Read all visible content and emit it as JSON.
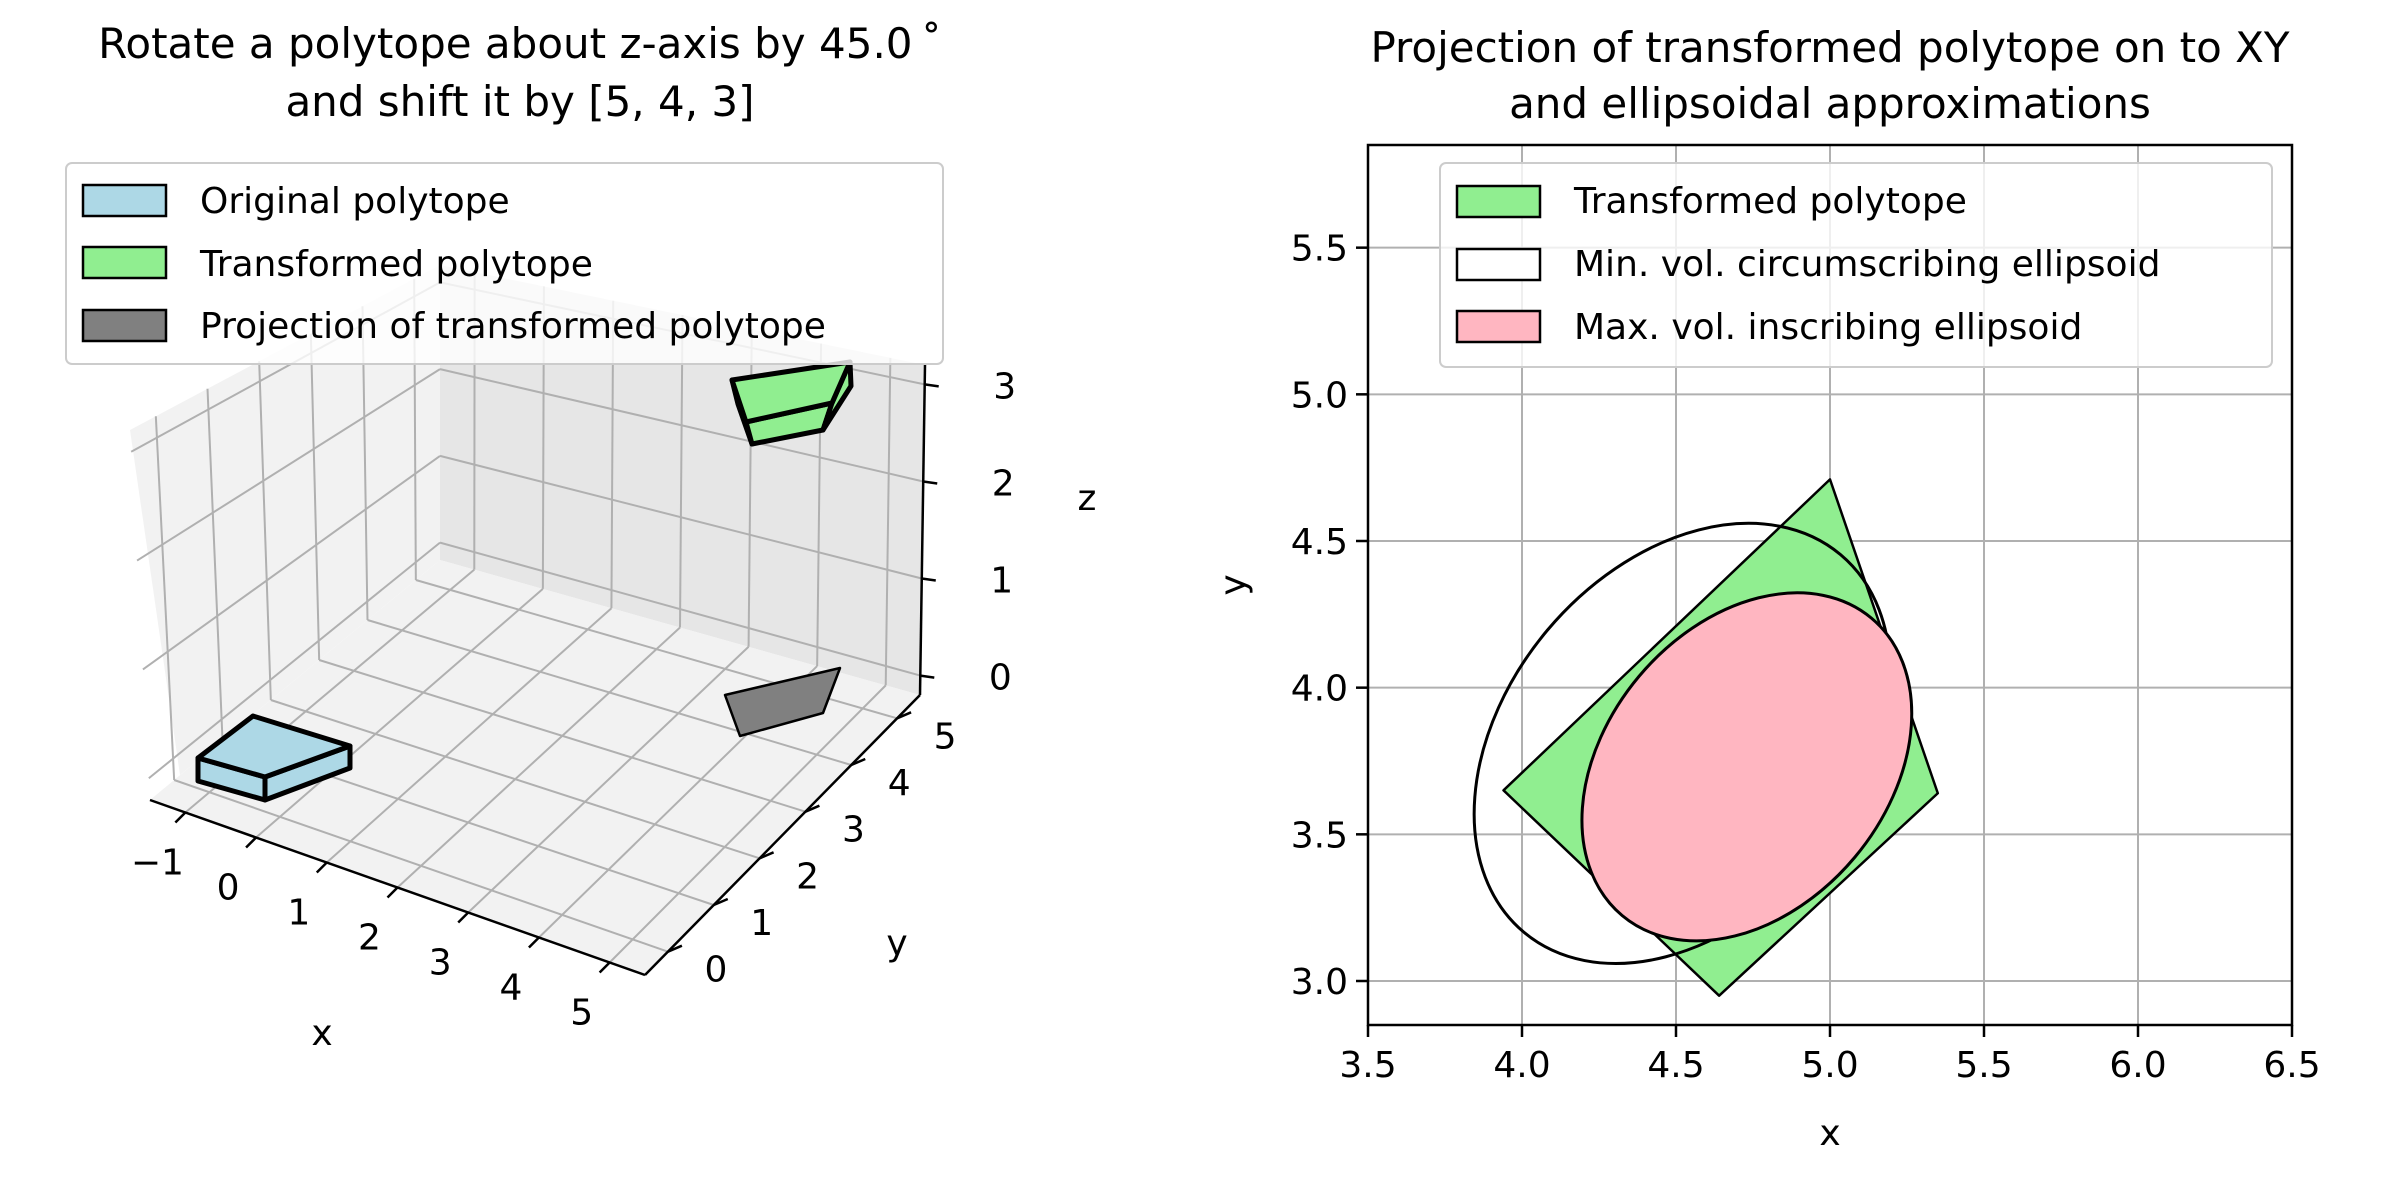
{
  "chart_data": [
    {
      "type": "3d-polytope",
      "title": [
        "Rotate a polytope about z-axis by 45.0 ˚",
        "and shift it by [5, 4, 3]"
      ],
      "xlabel": "x",
      "ylabel": "y",
      "zlabel": "z",
      "x_ticks": [
        "−1",
        "0",
        "1",
        "2",
        "3",
        "4",
        "5"
      ],
      "y_ticks": [
        "0",
        "1",
        "2",
        "3",
        "4",
        "5"
      ],
      "z_ticks": [
        "0",
        "1",
        "2",
        "3"
      ],
      "xlim": [
        -1.5,
        5.5
      ],
      "ylim": [
        -0.5,
        5.5
      ],
      "zlim": [
        -0.2,
        3.2
      ],
      "grid": true,
      "legend_position": "top-left",
      "legend": [
        {
          "label": "Original polytope",
          "color": "#add8e6"
        },
        {
          "label": "Transformed polytope",
          "color": "#90ee90"
        },
        {
          "label": "Projection of transformed polytope",
          "color": "#808080"
        }
      ]
    },
    {
      "type": "area",
      "title": [
        "Projection of transformed polytope on to XY",
        "and ellipsoidal approximations"
      ],
      "xlabel": "x",
      "ylabel": "y",
      "xlim": [
        3.5,
        6.5
      ],
      "ylim": [
        2.85,
        5.85
      ],
      "x_ticks": [
        "3.5",
        "4.0",
        "4.5",
        "5.0",
        "5.5",
        "6.0",
        "6.5"
      ],
      "y_ticks": [
        "3.0",
        "3.5",
        "4.0",
        "4.5",
        "5.0",
        "5.5"
      ],
      "grid": true,
      "legend_position": "top",
      "legend": [
        {
          "label": "Transformed polytope",
          "color": "#90ee90"
        },
        {
          "label": "Min. vol. circumscribing ellipsoid",
          "color": "#ffffff"
        },
        {
          "label": "Max. vol. inscribing ellipsoid",
          "color": "#ffb6c1"
        }
      ],
      "polygon": {
        "x": [
          5.0,
          5.35,
          4.64,
          3.94
        ],
        "y": [
          4.71,
          3.64,
          2.95,
          3.65
        ]
      },
      "outer_ellipse": {
        "center": [
          4.52,
          3.81
        ],
        "semi_axes": [
          0.8,
          0.6
        ],
        "angle_deg": 50
      },
      "inner_ellipse": {
        "center": [
          4.73,
          3.73
        ],
        "semi_axes": [
          0.63,
          0.48
        ],
        "angle_deg": 50
      }
    }
  ]
}
